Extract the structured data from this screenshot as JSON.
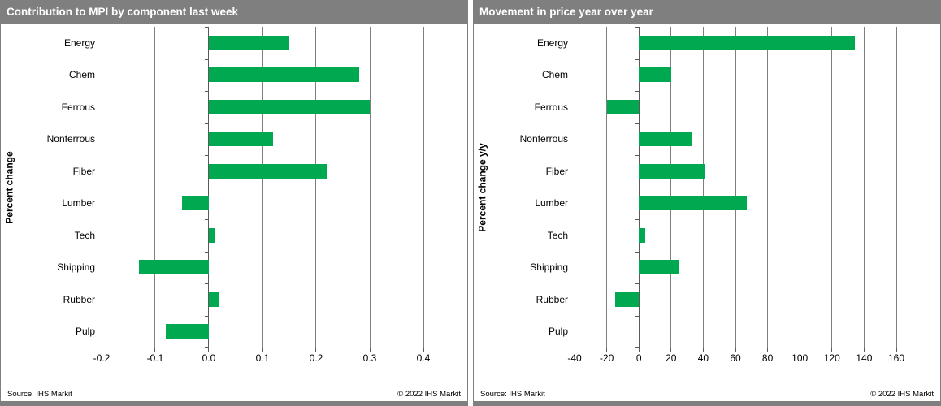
{
  "colors": {
    "bar_green": "#00A94F",
    "titlebar_gray": "#7f7f7f",
    "gridline_gray": "#7f7f7f",
    "axis_dark": "#595959"
  },
  "chart_data": [
    {
      "type": "bar",
      "orientation": "horizontal",
      "title": "Contribution to MPI by component last week",
      "ylabel": "Percent change",
      "xlabel": "",
      "categories": [
        "Energy",
        "Chem",
        "Ferrous",
        "Nonferrous",
        "Fiber",
        "Lumber",
        "Tech",
        "Shipping",
        "Rubber",
        "Pulp"
      ],
      "values": [
        0.15,
        0.28,
        0.3,
        0.12,
        0.22,
        -0.05,
        0.01,
        -0.13,
        0.02,
        -0.08
      ],
      "xlim": [
        -0.2,
        0.4
      ],
      "xticks": [
        -0.2,
        -0.1,
        0.0,
        0.1,
        0.2,
        0.3,
        0.4
      ],
      "xtick_labels": [
        "-0.2",
        "-0.1",
        "0.0",
        "0.1",
        "0.2",
        "0.3",
        "0.4"
      ],
      "grid": true,
      "legend": "none",
      "bar_color": "#00A94F",
      "source": "Source: IHS Markit",
      "copyright": "© 2022 IHS Markit"
    },
    {
      "type": "bar",
      "orientation": "horizontal",
      "title": "Movement in price year over year",
      "ylabel": "Percent change y/y",
      "xlabel": "",
      "categories": [
        "Energy",
        "Chem",
        "Ferrous",
        "Nonferrous",
        "Fiber",
        "Lumber",
        "Tech",
        "Shipping",
        "Rubber",
        "Pulp"
      ],
      "values": [
        134,
        20,
        -20,
        33,
        41,
        67,
        4,
        25,
        -15,
        0
      ],
      "xlim": [
        -40,
        160
      ],
      "xticks": [
        -40,
        -20,
        0,
        20,
        40,
        60,
        80,
        100,
        120,
        140,
        160
      ],
      "xtick_labels": [
        "-40",
        "-20",
        "0",
        "20",
        "40",
        "60",
        "80",
        "100",
        "120",
        "140",
        "160"
      ],
      "grid": true,
      "legend": "none",
      "bar_color": "#00A94F",
      "source": "Source: IHS Markit",
      "copyright": "© 2022 IHS Markit"
    }
  ]
}
